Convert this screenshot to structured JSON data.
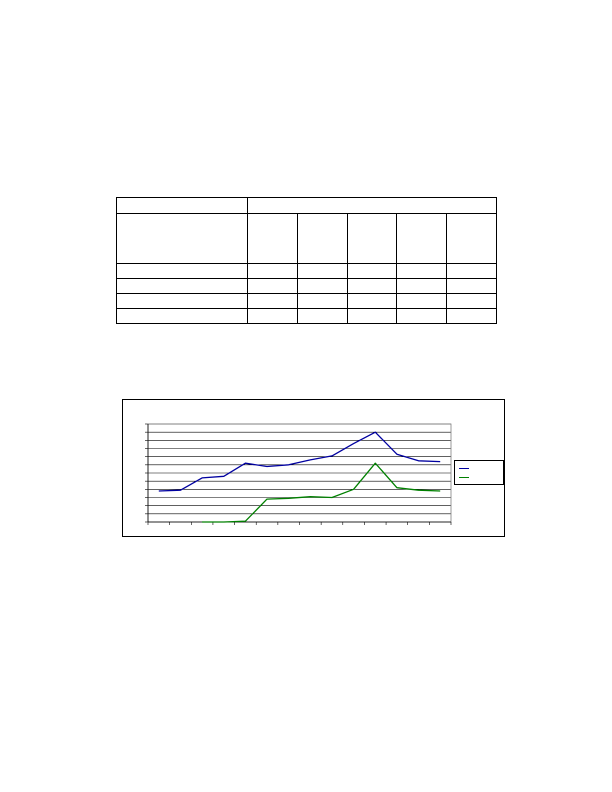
{
  "table": {
    "title": "",
    "columns": [
      "",
      "",
      "",
      "",
      "",
      ""
    ],
    "rows": [
      [
        "",
        "",
        "",
        "",
        "",
        ""
      ],
      [
        "",
        "",
        "",
        "",
        "",
        ""
      ],
      [
        "",
        "",
        "",
        "",
        "",
        ""
      ],
      [
        "",
        "",
        "",
        "",
        "",
        ""
      ]
    ]
  },
  "chart_data": {
    "type": "line",
    "title": "",
    "xlabel": "",
    "ylabel": "",
    "x": [
      1,
      2,
      3,
      4,
      5,
      6,
      7,
      8,
      9,
      10,
      11,
      12,
      13,
      14
    ],
    "ylim": [
      0,
      12
    ],
    "grid": true,
    "legend": "right",
    "series": [
      {
        "color": "#0000a0",
        "values": [
          3.8,
          3.9,
          5.4,
          5.6,
          7.2,
          6.8,
          7.0,
          7.6,
          8.1,
          9.6,
          11.0,
          8.3,
          7.5,
          7.4
        ]
      },
      {
        "color": "#008000",
        "values": [
          null,
          null,
          0.0,
          0.0,
          0.1,
          2.8,
          2.9,
          3.1,
          3.0,
          4.0,
          7.2,
          4.2,
          3.9,
          3.8
        ]
      }
    ]
  }
}
